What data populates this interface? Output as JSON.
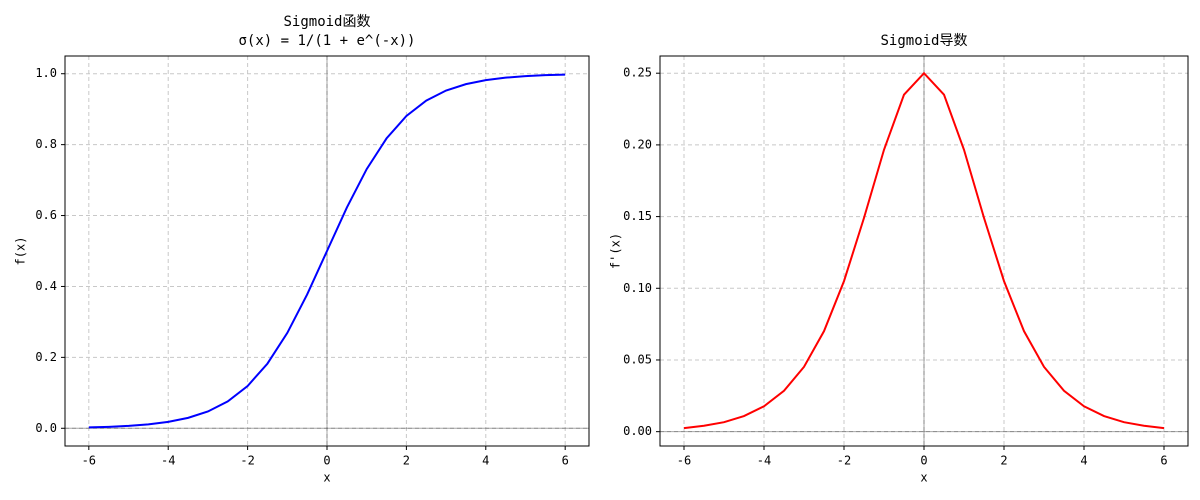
{
  "chart_data": [
    {
      "type": "line",
      "title": "Sigmoid函数",
      "subtitle": "σ(x) = 1/(1 + e^(-x))",
      "x_label": "x",
      "y_label": "f(x)",
      "x": [
        -6,
        -5.5,
        -5,
        -4.5,
        -4,
        -3.5,
        -3,
        -2.5,
        -2,
        -1.5,
        -1,
        -0.5,
        0,
        0.5,
        1,
        1.5,
        2,
        2.5,
        3,
        3.5,
        4,
        4.5,
        5,
        5.5,
        6
      ],
      "series": [
        {
          "color": "#0000ff",
          "values": [
            0.0025,
            0.0041,
            0.0067,
            0.011,
            0.018,
            0.0293,
            0.0474,
            0.0759,
            0.1192,
            0.1824,
            0.2689,
            0.3775,
            0.5,
            0.6225,
            0.7311,
            0.8176,
            0.8808,
            0.9241,
            0.9526,
            0.9707,
            0.982,
            0.989,
            0.9933,
            0.9959,
            0.9975
          ]
        }
      ],
      "xlim": [
        -6.6,
        6.6
      ],
      "xticks": [
        -6,
        -4,
        -2,
        0,
        2,
        4,
        6
      ],
      "ylim": [
        -0.05,
        1.05
      ],
      "yticks": [
        {
          "value": 0,
          "label": "0.0"
        },
        0.2,
        0.4,
        0.6,
        0.8,
        {
          "value": 1,
          "label": "1.0"
        }
      ],
      "hline": 0,
      "vline": 0,
      "grid": true
    },
    {
      "type": "line",
      "title": "Sigmoid导数",
      "x_label": "x",
      "y_label": "f'(x)",
      "x": [
        -6,
        -5.5,
        -5,
        -4.5,
        -4,
        -3.5,
        -3,
        -2.5,
        -2,
        -1.5,
        -1,
        -0.5,
        0,
        0.5,
        1,
        1.5,
        2,
        2.5,
        3,
        3.5,
        4,
        4.5,
        5,
        5.5,
        6
      ],
      "series": [
        {
          "color": "#ff0000",
          "values": [
            0.0025,
            0.0041,
            0.0066,
            0.0109,
            0.0177,
            0.0285,
            0.0452,
            0.0701,
            0.105,
            0.1491,
            0.1966,
            0.235,
            0.25,
            0.235,
            0.1966,
            0.1491,
            0.105,
            0.0701,
            0.0452,
            0.0285,
            0.0177,
            0.0109,
            0.0066,
            0.0041,
            0.0025
          ]
        }
      ],
      "xlim": [
        -6.6,
        6.6
      ],
      "xticks": [
        -6,
        -4,
        -2,
        0,
        2,
        4,
        6
      ],
      "ylim": [
        -0.01,
        0.262
      ],
      "yticks": [
        {
          "value": 0,
          "label": "0.00"
        },
        {
          "value": 0.05,
          "label": "0.05"
        },
        {
          "value": 0.1,
          "label": "0.10"
        },
        {
          "value": 0.15,
          "label": "0.15"
        },
        {
          "value": 0.2,
          "label": "0.20"
        },
        {
          "value": 0.25,
          "label": "0.25"
        }
      ],
      "hline": 0,
      "vline": 0,
      "grid": true
    }
  ]
}
